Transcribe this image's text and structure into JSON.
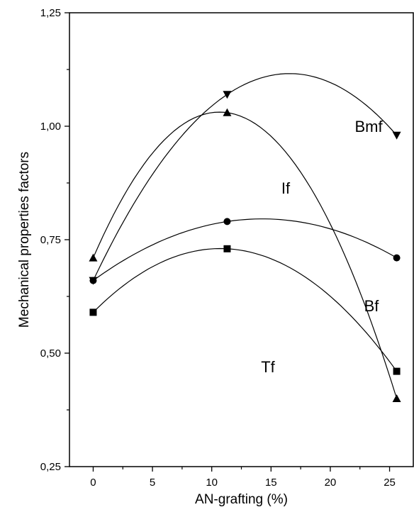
{
  "chart_data": {
    "type": "scatter",
    "xlabel": "AN-grafting (%)",
    "ylabel": "Mechanical properties factors",
    "xlim": [
      -2,
      27
    ],
    "ylim": [
      0.25,
      1.25
    ],
    "x_ticks": [
      0,
      5,
      10,
      15,
      20,
      25
    ],
    "x_tick_labels": [
      "0",
      "5",
      "10",
      "15",
      "20",
      "25"
    ],
    "y_ticks": [
      0.25,
      0.5,
      0.75,
      1.0,
      1.25
    ],
    "y_tick_labels": [
      "0,25",
      "0,50",
      "0,75",
      "1,00",
      "1,25"
    ],
    "grid": false,
    "legend": "none",
    "x": [
      0,
      11.3,
      25.6
    ],
    "series": [
      {
        "name": "Bmf",
        "marker": "triangle-down",
        "values": [
          0.66,
          1.07,
          0.98
        ]
      },
      {
        "name": "If",
        "marker": "triangle-up",
        "values": [
          0.71,
          1.03,
          0.4
        ]
      },
      {
        "name": "Bf",
        "marker": "circle",
        "values": [
          0.66,
          0.79,
          0.71
        ]
      },
      {
        "name": "Tf",
        "marker": "square",
        "values": [
          0.59,
          0.73,
          0.46
        ]
      }
    ]
  }
}
